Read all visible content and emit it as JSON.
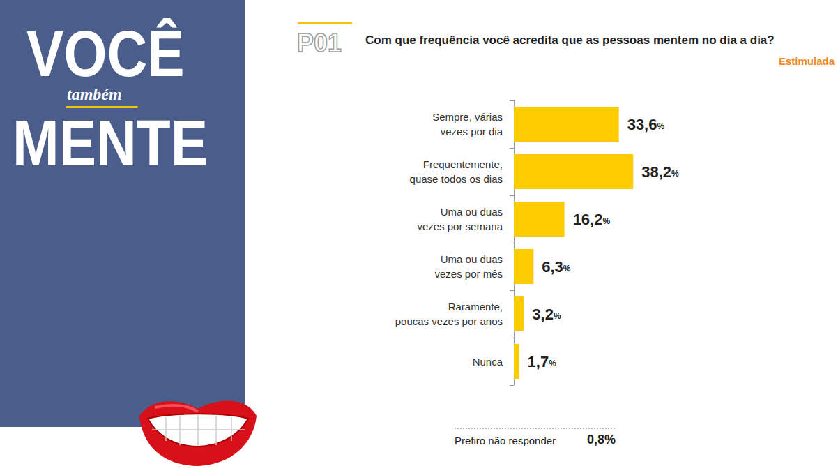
{
  "panel": {
    "lines": [
      "VOCÊ",
      "também",
      "MENTE"
    ]
  },
  "badge": "P01",
  "chart_data": {
    "type": "bar",
    "title": "Com que frequência você acredita que as pessoas mentem no dia a dia?",
    "subtitle": "Estimulada",
    "orientation": "horizontal",
    "categories": [
      "Sempre, várias\nvezes por dia",
      "Frequentemente,\nquase todos os dias",
      "Uma ou duas\nvezes por semana",
      "Uma ou duas\nvezes por mês",
      "Raramente,\npoucas vezes por anos",
      "Nunca"
    ],
    "values": [
      33.6,
      38.2,
      16.2,
      6.3,
      3.2,
      1.7
    ],
    "value_labels": [
      "33,6%",
      "38,2%",
      "16,2%",
      "6,3%",
      "3,2%",
      "1,7%"
    ],
    "color": "#fecb00",
    "xlim": [
      0,
      60
    ],
    "data_labels": true,
    "tick_labels": "y",
    "grid": false,
    "annotations": [
      {
        "text": "Prefiro não responder",
        "label": "0,8%"
      }
    ]
  }
}
